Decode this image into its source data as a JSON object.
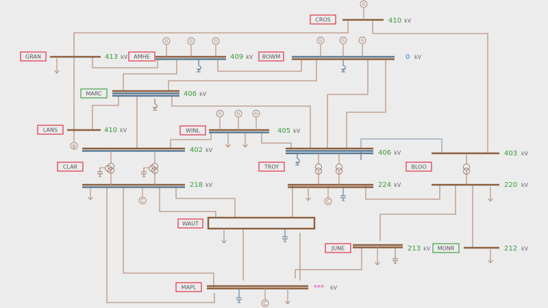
{
  "colors": {
    "background": "#ececec",
    "bus_brown": "#8b5e3c",
    "bus_blue": "#5a7a94",
    "line": "#b8937e",
    "voltage_ok": "#3a9a3a",
    "voltage_zero": "#3a7fd0",
    "voltage_unknown": "#e040a0",
    "label_alarm_border": "#e03040",
    "label_ok_border": "#40a040"
  },
  "generator_symbol": "G",
  "buses": [
    {
      "name": "CROS",
      "voltage": "410",
      "unit": "kV",
      "status": "alarm"
    },
    {
      "name": "GRAN",
      "voltage": "413",
      "unit": "kV",
      "status": "alarm"
    },
    {
      "name": "AMHE",
      "voltage": "409",
      "unit": "kV",
      "status": "alarm"
    },
    {
      "name": "BOWM",
      "voltage": "0",
      "unit": "kV",
      "status": "alarm"
    },
    {
      "name": "MARC",
      "voltage": "406",
      "unit": "kV",
      "status": "ok"
    },
    {
      "name": "LANS",
      "voltage": "410",
      "unit": "kV",
      "status": "alarm"
    },
    {
      "name": "WINL",
      "voltage": "405",
      "unit": "kV",
      "status": "alarm"
    },
    {
      "name": "CLAR",
      "voltage": "402",
      "unit": "kV",
      "status": "alarm",
      "lv_voltage": "218",
      "lv_unit": "kV"
    },
    {
      "name": "TROY",
      "voltage": "406",
      "unit": "kV",
      "status": "alarm",
      "lv_voltage": "224",
      "lv_unit": "kV"
    },
    {
      "name": "BLOO",
      "voltage": "403",
      "unit": "kV",
      "status": "alarm",
      "lv_voltage": "220",
      "lv_unit": "kV"
    },
    {
      "name": "WAUT",
      "status": "alarm"
    },
    {
      "name": "JUNE",
      "voltage": "213",
      "unit": "kV",
      "status": "alarm"
    },
    {
      "name": "MONR",
      "voltage": "212",
      "unit": "kV",
      "status": "ok"
    },
    {
      "name": "MAPL",
      "voltage": "***",
      "unit": "kV",
      "status": "alarm"
    }
  ]
}
